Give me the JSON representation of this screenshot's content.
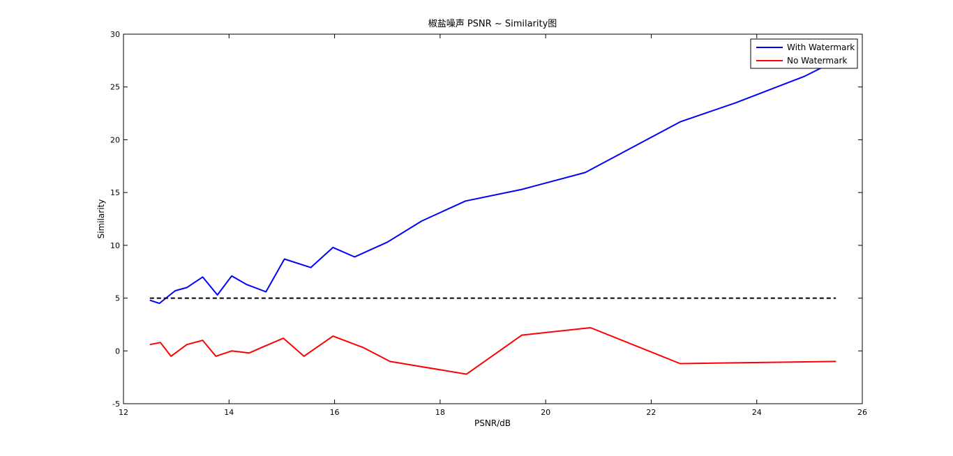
{
  "chart_data": {
    "type": "line",
    "title": "椒盐噪声 PSNR ~ Similarity图",
    "xlabel": "PSNR/dB",
    "ylabel": "Similarity",
    "xlim": [
      12,
      26
    ],
    "ylim": [
      -5,
      30
    ],
    "xticks": [
      12,
      14,
      16,
      18,
      20,
      22,
      24,
      26
    ],
    "yticks": [
      -5,
      0,
      5,
      10,
      15,
      20,
      25,
      30
    ],
    "grid": false,
    "legend_position": "top-right",
    "series": [
      {
        "name": "With Watermark",
        "color": "#0000ff",
        "x": [
          12.5,
          12.68,
          12.98,
          13.2,
          13.5,
          13.78,
          14.05,
          14.33,
          14.7,
          15.05,
          15.55,
          15.97,
          16.38,
          17.0,
          17.65,
          18.48,
          19.55,
          20.75,
          22.55,
          23.6,
          24.9,
          25.5
        ],
        "y": [
          4.8,
          4.5,
          5.7,
          6.0,
          7.0,
          5.3,
          7.1,
          6.3,
          5.6,
          8.7,
          7.9,
          9.8,
          8.9,
          10.3,
          12.3,
          14.2,
          15.3,
          16.9,
          21.7,
          23.5,
          26.0,
          27.5
        ]
      },
      {
        "name": "No Watermark",
        "color": "#ff0000",
        "x": [
          12.5,
          12.7,
          12.9,
          13.2,
          13.5,
          13.75,
          14.05,
          14.38,
          14.7,
          15.03,
          15.42,
          15.97,
          16.55,
          17.05,
          18.5,
          19.55,
          20.85,
          22.55,
          25.5
        ],
        "y": [
          0.6,
          0.8,
          -0.5,
          0.6,
          1.0,
          -0.5,
          0.0,
          -0.2,
          0.5,
          1.2,
          -0.5,
          1.4,
          0.3,
          -1.0,
          -2.2,
          1.5,
          2.2,
          -1.2,
          -1.0
        ]
      },
      {
        "color": "#000000",
        "dashed": true,
        "x": [
          12.5,
          25.5
        ],
        "y": [
          5,
          5
        ]
      }
    ]
  }
}
